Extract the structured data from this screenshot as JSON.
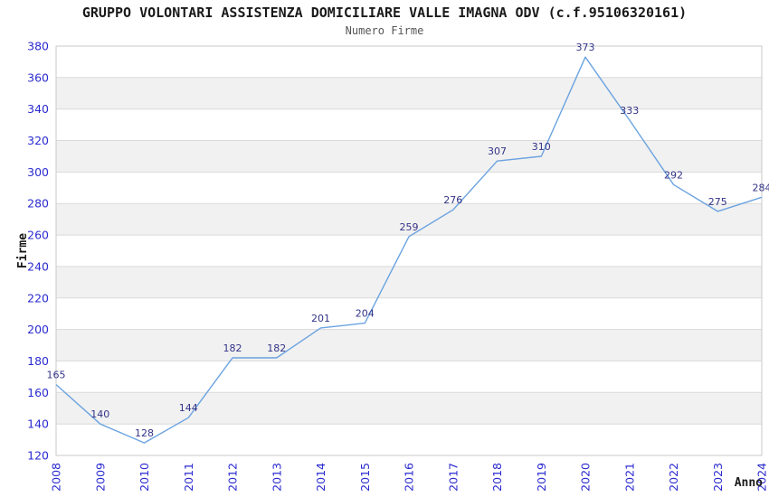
{
  "header": {
    "title": "GRUPPO VOLONTARI ASSISTENZA DOMICILIARE VALLE IMAGNA ODV (c.f.95106320161)",
    "subtitle": "Numero Firme"
  },
  "chart_data": {
    "type": "line",
    "title": "GRUPPO VOLONTARI ASSISTENZA DOMICILIARE VALLE IMAGNA ODV (c.f.95106320161)",
    "subtitle": "Numero Firme",
    "xlabel": "Anno",
    "ylabel": "Firme",
    "categories": [
      "2008",
      "2009",
      "2010",
      "2011",
      "2012",
      "2013",
      "2014",
      "2015",
      "2016",
      "2017",
      "2018",
      "2019",
      "2020",
      "2021",
      "2022",
      "2023",
      "2024"
    ],
    "series": [
      {
        "name": "Numero Firme",
        "values": [
          165,
          140,
          128,
          144,
          182,
          182,
          201,
          204,
          259,
          276,
          307,
          310,
          373,
          333,
          292,
          275,
          284
        ]
      }
    ],
    "ylim": [
      120,
      380
    ],
    "ytick_step": 20,
    "grid": "horizontal",
    "legend": "none",
    "band_fill": true,
    "data_labels": true,
    "colors": {
      "line": "#6ba3e0",
      "tick_label": "#2b2bd0",
      "data_label": "#333388",
      "band": "#f1f1f1",
      "gridline": "#dadada",
      "plot_border": "#c9c9c9",
      "axis_title": "#1a1a1a",
      "background": "#ffffff"
    }
  }
}
